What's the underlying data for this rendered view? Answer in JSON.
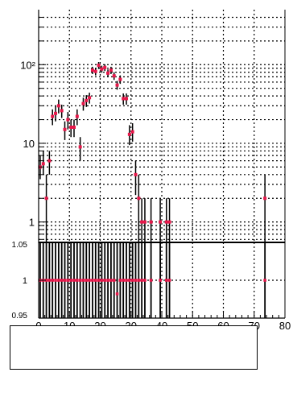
{
  "chart_data": [
    {
      "type": "scatter",
      "panel": "main",
      "title": "",
      "xlabel": "",
      "ylabel": "",
      "ylog": true,
      "xlim": [
        0,
        80
      ],
      "ylim": [
        0.55,
        500
      ],
      "grid": true,
      "grid_style": "dotted",
      "yticks": [
        {
          "value": 1,
          "label": "1"
        },
        {
          "value": 10,
          "label": "10"
        },
        {
          "value": 100,
          "label": "10²"
        }
      ],
      "points": [
        {
          "x": 0.5,
          "y": 5,
          "lo": 3.5,
          "hi": 7
        },
        {
          "x": 1.5,
          "y": 5.5,
          "lo": 4,
          "hi": 8
        },
        {
          "x": 2.5,
          "y": 2,
          "lo": 0.55,
          "hi": 4
        },
        {
          "x": 3.5,
          "y": 6,
          "lo": 4,
          "hi": 8
        },
        {
          "x": 4.5,
          "y": 22,
          "lo": 17,
          "hi": 27
        },
        {
          "x": 5.5,
          "y": 24,
          "lo": 19,
          "hi": 30
        },
        {
          "x": 6.5,
          "y": 30,
          "lo": 24,
          "hi": 36
        },
        {
          "x": 7.5,
          "y": 26,
          "lo": 21,
          "hi": 31
        },
        {
          "x": 8.5,
          "y": 15,
          "lo": 11,
          "hi": 19
        },
        {
          "x": 9.5,
          "y": 20,
          "lo": 15,
          "hi": 25
        },
        {
          "x": 10.5,
          "y": 16,
          "lo": 12,
          "hi": 20
        },
        {
          "x": 11.5,
          "y": 16,
          "lo": 12,
          "hi": 20
        },
        {
          "x": 12.5,
          "y": 22,
          "lo": 17,
          "hi": 27
        },
        {
          "x": 13.5,
          "y": 9,
          "lo": 6,
          "hi": 12
        },
        {
          "x": 14.5,
          "y": 32,
          "lo": 26,
          "hi": 38
        },
        {
          "x": 15.5,
          "y": 35,
          "lo": 29,
          "hi": 41
        },
        {
          "x": 16.5,
          "y": 38,
          "lo": 32,
          "hi": 44
        },
        {
          "x": 17.5,
          "y": 85,
          "lo": 76,
          "hi": 94
        },
        {
          "x": 18.5,
          "y": 82,
          "lo": 73,
          "hi": 91
        },
        {
          "x": 19.5,
          "y": 98,
          "lo": 88,
          "hi": 108
        },
        {
          "x": 20.5,
          "y": 88,
          "lo": 79,
          "hi": 97
        },
        {
          "x": 21.5,
          "y": 92,
          "lo": 83,
          "hi": 101
        },
        {
          "x": 22.5,
          "y": 78,
          "lo": 70,
          "hi": 87
        },
        {
          "x": 23.5,
          "y": 85,
          "lo": 76,
          "hi": 94
        },
        {
          "x": 24.5,
          "y": 72,
          "lo": 64,
          "hi": 80
        },
        {
          "x": 25.5,
          "y": 55,
          "lo": 48,
          "hi": 62
        },
        {
          "x": 26.5,
          "y": 65,
          "lo": 57,
          "hi": 73
        },
        {
          "x": 27.5,
          "y": 37,
          "lo": 31,
          "hi": 43
        },
        {
          "x": 28.5,
          "y": 37,
          "lo": 31,
          "hi": 43
        },
        {
          "x": 29.5,
          "y": 13,
          "lo": 9.5,
          "hi": 17
        },
        {
          "x": 30.5,
          "y": 14,
          "lo": 10.5,
          "hi": 18
        },
        {
          "x": 31.5,
          "y": 4,
          "lo": 2.2,
          "hi": 6
        },
        {
          "x": 32.5,
          "y": 2,
          "lo": 0.55,
          "hi": 4
        },
        {
          "x": 33.5,
          "y": 1,
          "lo": 0.55,
          "hi": 2
        },
        {
          "x": 34.5,
          "y": 1,
          "lo": 0.55,
          "hi": 2
        },
        {
          "x": 36.5,
          "y": 1,
          "lo": 0.55,
          "hi": 2
        },
        {
          "x": 39.5,
          "y": 1,
          "lo": 0.55,
          "hi": 2
        },
        {
          "x": 41.5,
          "y": 1,
          "lo": 0.55,
          "hi": 2
        },
        {
          "x": 42.5,
          "y": 1,
          "lo": 0.55,
          "hi": 2
        },
        {
          "x": 73.5,
          "y": 2,
          "lo": 0.55,
          "hi": 4
        }
      ]
    },
    {
      "type": "scatter",
      "panel": "ratio",
      "xlabel": "",
      "ylabel": "",
      "xlim": [
        0,
        80
      ],
      "ylim": [
        0.95,
        1.05
      ],
      "grid": true,
      "grid_style": "dotted",
      "xticks": [
        0,
        10,
        20,
        30,
        40,
        50,
        60,
        70,
        80
      ],
      "yticks": [
        {
          "value": 0.95,
          "label": "0.95"
        },
        {
          "value": 1.0,
          "label": "1"
        },
        {
          "value": 1.05,
          "label": "1.05"
        }
      ],
      "points": [
        {
          "x": 0.5,
          "y": 1
        },
        {
          "x": 1.5,
          "y": 1
        },
        {
          "x": 2.5,
          "y": 1
        },
        {
          "x": 3.5,
          "y": 1
        },
        {
          "x": 4.5,
          "y": 1
        },
        {
          "x": 5.5,
          "y": 1
        },
        {
          "x": 6.5,
          "y": 1
        },
        {
          "x": 7.5,
          "y": 1
        },
        {
          "x": 8.5,
          "y": 1
        },
        {
          "x": 9.5,
          "y": 1
        },
        {
          "x": 10.5,
          "y": 1
        },
        {
          "x": 11.5,
          "y": 1
        },
        {
          "x": 12.5,
          "y": 1
        },
        {
          "x": 13.5,
          "y": 1
        },
        {
          "x": 14.5,
          "y": 1
        },
        {
          "x": 15.5,
          "y": 1
        },
        {
          "x": 16.5,
          "y": 1
        },
        {
          "x": 17.5,
          "y": 1
        },
        {
          "x": 18.5,
          "y": 1
        },
        {
          "x": 19.5,
          "y": 1
        },
        {
          "x": 20.5,
          "y": 1
        },
        {
          "x": 21.5,
          "y": 1
        },
        {
          "x": 22.5,
          "y": 1
        },
        {
          "x": 23.5,
          "y": 1
        },
        {
          "x": 24.5,
          "y": 1
        },
        {
          "x": 25.5,
          "y": 0.982
        },
        {
          "x": 26.5,
          "y": 1
        },
        {
          "x": 27.5,
          "y": 1
        },
        {
          "x": 28.5,
          "y": 1
        },
        {
          "x": 29.5,
          "y": 1
        },
        {
          "x": 30.5,
          "y": 1
        },
        {
          "x": 31.5,
          "y": 1
        },
        {
          "x": 32.5,
          "y": 1
        },
        {
          "x": 33.5,
          "y": 1
        },
        {
          "x": 34.5,
          "y": 1
        },
        {
          "x": 36.5,
          "y": 1
        },
        {
          "x": 39.5,
          "y": 1
        },
        {
          "x": 41.5,
          "y": 1
        },
        {
          "x": 42.5,
          "y": 1
        },
        {
          "x": 73.5,
          "y": 1
        }
      ]
    }
  ],
  "colors": {
    "marker": "#e8174a",
    "errorbar": "#000000",
    "axis": "#000000",
    "grid": "#000000"
  },
  "legend": {
    "entries": []
  }
}
